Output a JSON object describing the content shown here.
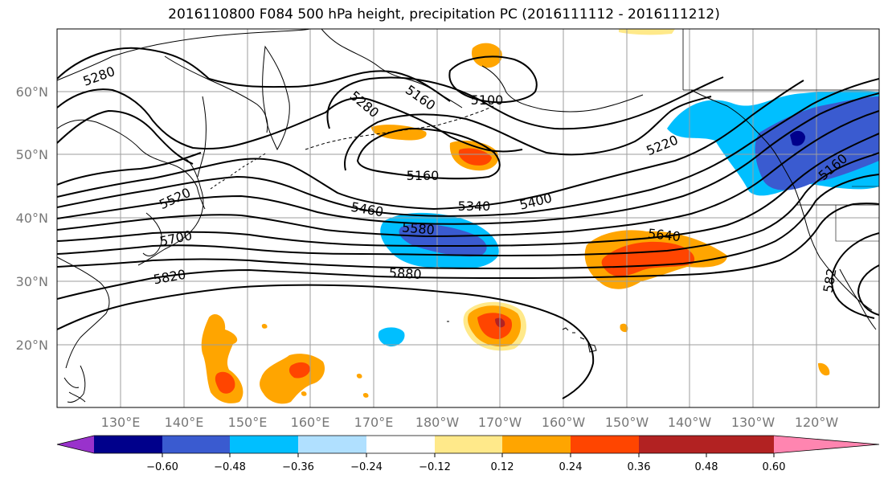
{
  "title": "2016110800 F084 500 hPa height, precipitation PC (2016111112 - 2016111212)",
  "lat_labels": [
    "60°N",
    "50°N",
    "40°N",
    "30°N",
    "20°N"
  ],
  "lon_labels": [
    "130°E",
    "140°E",
    "150°E",
    "160°E",
    "170°E",
    "180°W",
    "170°W",
    "160°W",
    "150°W",
    "140°W",
    "130°W",
    "120°W"
  ],
  "contour_labels": [
    "5280",
    "5280",
    "5160",
    "5100",
    "5160",
    "5220",
    "5160",
    "5520",
    "5460",
    "5340",
    "5400",
    "5580",
    "5700",
    "5640",
    "5820",
    "5880",
    "582"
  ],
  "colorbar": {
    "tick_labels": [
      "−0.60",
      "−0.48",
      "−0.36",
      "−0.24",
      "−0.12",
      "0.12",
      "0.24",
      "0.36",
      "0.48",
      "0.60"
    ],
    "colors": [
      "#9932cc",
      "#00008b",
      "#3a5bd0",
      "#00bfff",
      "#b0e0ff",
      "#ffffff",
      "#ffe98a",
      "#ffa500",
      "#ff4500",
      "#b22222",
      "#ff85b0"
    ]
  },
  "colors": {
    "grid": "#9e9e9e",
    "coast": "#000000",
    "contour": "#000000"
  }
}
